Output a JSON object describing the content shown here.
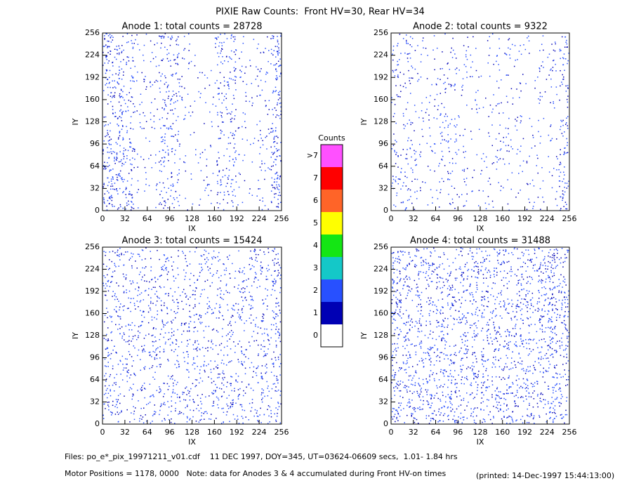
{
  "title": "PIXIE Raw Counts:  Front HV=30, Rear HV=34",
  "chart_data": [
    {
      "type": "heatmap",
      "title": "Anode 1: total counts = 28728",
      "x_label": "IX",
      "y_label": "IY",
      "xlim": [
        0,
        256
      ],
      "ylim": [
        0,
        256
      ],
      "xticks": [
        0,
        32,
        64,
        96,
        128,
        160,
        192,
        224,
        256
      ],
      "yticks": [
        0,
        32,
        64,
        96,
        128,
        160,
        192,
        224,
        256
      ],
      "column_density": [
        0.45,
        0.4,
        0.3,
        0.12,
        0.1,
        0.3,
        0.28,
        0.1,
        0.06,
        0.08,
        0.25,
        0.3,
        0.1,
        0.08,
        0.15,
        0.45
      ]
    },
    {
      "type": "heatmap",
      "title": "Anode 2: total counts = 9322",
      "x_label": "IX",
      "y_label": "IY",
      "xlim": [
        0,
        256
      ],
      "ylim": [
        0,
        256
      ],
      "xticks": [
        0,
        32,
        64,
        96,
        128,
        160,
        192,
        224,
        256
      ],
      "yticks": [
        0,
        32,
        64,
        96,
        128,
        160,
        192,
        224,
        256
      ],
      "column_density": [
        0.2,
        0.22,
        0.12,
        0.1,
        0.15,
        0.18,
        0.12,
        0.08,
        0.08,
        0.12,
        0.12,
        0.1,
        0.08,
        0.1,
        0.12,
        0.3
      ]
    },
    {
      "type": "heatmap",
      "title": "Anode 3: total counts = 15424",
      "x_label": "IX",
      "y_label": "IY",
      "xlim": [
        0,
        256
      ],
      "ylim": [
        0,
        256
      ],
      "xticks": [
        0,
        32,
        64,
        96,
        128,
        160,
        192,
        224,
        256
      ],
      "yticks": [
        0,
        32,
        64,
        96,
        128,
        160,
        192,
        224,
        256
      ],
      "column_density": [
        0.3,
        0.28,
        0.25,
        0.25,
        0.25,
        0.28,
        0.25,
        0.25,
        0.28,
        0.25,
        0.25,
        0.25,
        0.25,
        0.25,
        0.28,
        0.35
      ]
    },
    {
      "type": "heatmap",
      "title": "Anode 4: total counts = 31488",
      "x_label": "IX",
      "y_label": "IY",
      "xlim": [
        0,
        256
      ],
      "ylim": [
        0,
        256
      ],
      "xticks": [
        0,
        32,
        64,
        96,
        128,
        160,
        192,
        224,
        256
      ],
      "yticks": [
        0,
        32,
        64,
        96,
        128,
        160,
        192,
        224,
        256
      ],
      "column_density": [
        0.45,
        0.35,
        0.35,
        0.35,
        0.35,
        0.35,
        0.35,
        0.35,
        0.35,
        0.35,
        0.35,
        0.35,
        0.35,
        0.35,
        0.5,
        0.35
      ]
    }
  ],
  "colorbar": {
    "title": "Counts",
    "labels": [
      "0",
      "1",
      "2",
      "3",
      "4",
      "5",
      "6",
      "7",
      ">7"
    ],
    "colors": [
      "#ffffff",
      "#0000b4",
      "#2850ff",
      "#14c8c8",
      "#14e614",
      "#ffff00",
      "#ff6428",
      "#ff0000",
      "#ff50ff"
    ]
  },
  "footer": {
    "files": "Files: po_e*_pix_19971211_v01.cdf    11 DEC 1997, DOY=345, UT=03624-06609 secs,  1.01- 1.84 hrs",
    "motor": "Motor Positions = 1178, 0000   Note: data for Anodes 3 & 4 accumulated during Front HV-on times",
    "printed": "(printed: 14-Dec-1997 15:44:13:00)"
  }
}
